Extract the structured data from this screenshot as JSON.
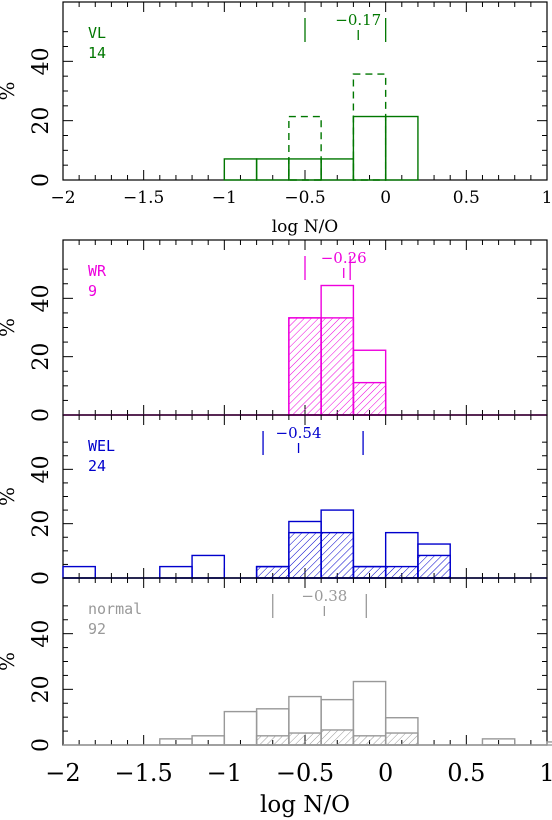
{
  "chart_data": [
    {
      "type": "histogram",
      "panel": "VL",
      "sample_label": "VL",
      "sample_count": "14",
      "color": "#007700",
      "xlim": [
        -2,
        1
      ],
      "ylim": [
        0,
        60
      ],
      "yticks": [
        "0",
        "20",
        "40"
      ],
      "xticks": [
        "−2",
        "−1.5",
        "−1",
        "−0.5",
        "0",
        "0.5",
        "1"
      ],
      "ylabel": "%",
      "xlabel": "log N/O",
      "bin_width": 0.2,
      "series": [
        {
          "style": "solid",
          "bins": [
            [
              -1.0,
              7.1
            ],
            [
              -0.8,
              7.1
            ],
            [
              -0.6,
              7.1
            ],
            [
              -0.4,
              7.1
            ],
            [
              -0.2,
              21.4
            ],
            [
              0.0,
              21.4
            ]
          ]
        },
        {
          "style": "dashed",
          "bins": [
            [
              -0.6,
              21.4
            ],
            [
              -0.2,
              35.7
            ]
          ]
        }
      ],
      "markers": {
        "low": -0.5,
        "median": -0.17,
        "high": 0.0
      },
      "median_label": "−0.17"
    },
    {
      "type": "histogram",
      "panel": "WR",
      "sample_label": "WR",
      "sample_count": "9",
      "color": "#ee00dd",
      "xlim": [
        -2,
        1
      ],
      "ylim": [
        0,
        60
      ],
      "yticks": [
        "0",
        "20",
        "40"
      ],
      "ylabel": "%",
      "bin_width": 0.2,
      "series": [
        {
          "style": "open",
          "bins": [
            [
              -0.6,
              33.3
            ],
            [
              -0.4,
              44.4
            ],
            [
              -0.2,
              22.2
            ]
          ]
        },
        {
          "style": "hatched",
          "bins": [
            [
              -0.6,
              33.3
            ],
            [
              -0.4,
              33.3
            ],
            [
              -0.2,
              11.1
            ]
          ]
        }
      ],
      "markers": {
        "low": -0.5,
        "median": -0.26,
        "high": -0.22
      },
      "median_label": "−0.26"
    },
    {
      "type": "histogram",
      "panel": "WEL",
      "sample_label": "WEL",
      "sample_count": "24",
      "color": "#0000cc",
      "xlim": [
        -2,
        1
      ],
      "ylim": [
        0,
        60
      ],
      "yticks": [
        "0",
        "20",
        "40"
      ],
      "ylabel": "%",
      "bin_width": 0.2,
      "series": [
        {
          "style": "open",
          "bins": [
            [
              -2.0,
              4.2
            ],
            [
              -1.4,
              4.2
            ],
            [
              -1.2,
              8.3
            ],
            [
              -0.8,
              4.2
            ],
            [
              -0.6,
              20.8
            ],
            [
              -0.4,
              25.0
            ],
            [
              -0.2,
              4.2
            ],
            [
              -0.0,
              16.7
            ],
            [
              0.2,
              12.5
            ]
          ]
        },
        {
          "style": "hatched",
          "bins": [
            [
              -0.8,
              4.2
            ],
            [
              -0.6,
              16.7
            ],
            [
              -0.4,
              16.7
            ],
            [
              -0.2,
              4.2
            ],
            [
              0.0,
              4.2
            ],
            [
              0.2,
              8.3
            ]
          ]
        }
      ],
      "markers": {
        "low": -0.76,
        "median": -0.54,
        "high": -0.14
      },
      "median_label": "−0.54"
    },
    {
      "type": "histogram",
      "panel": "normal",
      "sample_label": "normal",
      "sample_count": "92",
      "color": "#999999",
      "xlim": [
        -2,
        1
      ],
      "ylim": [
        0,
        60
      ],
      "yticks": [
        "0",
        "20",
        "40"
      ],
      "xticks": [
        "−2",
        "−1.5",
        "−1",
        "−0.5",
        "0",
        "0.5",
        "1"
      ],
      "ylabel": "%",
      "xlabel": "log N/O",
      "bin_width": 0.2,
      "series": [
        {
          "style": "open",
          "bins": [
            [
              -1.4,
              2.2
            ],
            [
              -1.2,
              3.3
            ],
            [
              -1.0,
              12.0
            ],
            [
              -0.8,
              13.0
            ],
            [
              -0.6,
              17.4
            ],
            [
              -0.4,
              16.3
            ],
            [
              -0.2,
              22.8
            ],
            [
              -0.0,
              9.8
            ],
            [
              0.2,
              0
            ],
            [
              0.6,
              2.2
            ],
            [
              1.0,
              1.1
            ]
          ]
        },
        {
          "style": "hatched",
          "bins": [
            [
              -0.8,
              3.3
            ],
            [
              -0.6,
              4.3
            ],
            [
              -0.4,
              5.4
            ],
            [
              -0.2,
              3.3
            ],
            [
              0.0,
              4.3
            ]
          ]
        }
      ],
      "markers": {
        "low": -0.7,
        "median": -0.38,
        "high": -0.12
      },
      "median_label": "−0.38"
    }
  ]
}
